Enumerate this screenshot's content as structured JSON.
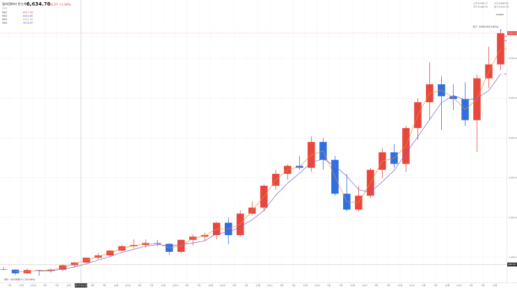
{
  "chart_data": {
    "type": "candlestick",
    "title": "필라델피아 반도체",
    "currency": "USD",
    "price": {
      "value": 6634.76,
      "label": "6,634.76"
    },
    "change": "+128.59 +1.98%",
    "ohlc_header": [
      "시가 6,506.17",
      "고가 6,663.01",
      "저가 6,488.35",
      "종가 6,634.76"
    ],
    "scale_mode": "Linear",
    "max_label": "최고 : 6,690.90(-0.83%)",
    "min_label": "최저 : 543.808(+1,120.06%)",
    "crosshair": {
      "x": 2017.01,
      "x_label": "2017-01-05",
      "y": {
        "value": 820.5,
        "label": "820.50"
      }
    },
    "x": [
      2015.375,
      2015.625,
      2015.875,
      2016.125,
      2016.375,
      2016.625,
      2016.875,
      2017.125,
      2017.375,
      2017.625,
      2017.875,
      2018.125,
      2018.375,
      2018.625,
      2018.875,
      2019.125,
      2019.375,
      2019.625,
      2019.875,
      2020.125,
      2020.375,
      2020.625,
      2020.875,
      2021.125,
      2021.375,
      2021.625,
      2021.875,
      2022.125,
      2022.375,
      2022.625,
      2022.875,
      2023.125,
      2023.375,
      2023.625,
      2023.875,
      2024.125,
      2024.375,
      2024.625,
      2024.875,
      2025.125,
      2025.375,
      2025.625,
      2025.875
    ],
    "open": [
      700,
      690,
      600,
      680,
      660,
      690,
      800,
      870,
      990,
      1050,
      1170,
      1280,
      1310,
      1360,
      1340,
      1140,
      1440,
      1520,
      1560,
      1870,
      1560,
      2100,
      2250,
      2800,
      3100,
      3300,
      3250,
      3900,
      3450,
      2600,
      2200,
      2550,
      3200,
      3640,
      3350,
      4250,
      4900,
      5350,
      5050,
      4980,
      4450,
      5500,
      5850
    ],
    "high": [
      760,
      700,
      720,
      690,
      720,
      820,
      880,
      1000,
      1110,
      1180,
      1310,
      1450,
      1450,
      1440,
      1350,
      1450,
      1580,
      1620,
      1890,
      2000,
      2180,
      2400,
      2830,
      3200,
      3340,
      3550,
      4040,
      4000,
      3550,
      3100,
      2800,
      3250,
      3750,
      3850,
      4300,
      5000,
      5900,
      5550,
      5350,
      5400,
      5600,
      6300,
      6690.9
    ],
    "low": [
      680,
      560,
      590,
      540,
      620,
      660,
      760,
      860,
      950,
      1010,
      1150,
      1220,
      1240,
      1280,
      1060,
      1100,
      1300,
      1420,
      1450,
      1330,
      1530,
      2060,
      2150,
      2700,
      2950,
      3200,
      3150,
      3200,
      2550,
      2160,
      2150,
      2500,
      3000,
      3250,
      3150,
      3950,
      4450,
      4200,
      4700,
      4300,
      3650,
      5250,
      5700
    ],
    "close": [
      690,
      600,
      680,
      660,
      690,
      800,
      870,
      990,
      1050,
      1170,
      1280,
      1310,
      1360,
      1340,
      1140,
      1440,
      1520,
      1560,
      1870,
      1560,
      2100,
      2250,
      2800,
      3100,
      3300,
      3250,
      3900,
      3450,
      2600,
      2200,
      2550,
      3200,
      3640,
      3350,
      4250,
      4900,
      5350,
      5050,
      4980,
      4450,
      5500,
      5850,
      6634.76
    ],
    "up_color": "#e8473e",
    "down_color": "#2f6fe0",
    "indicators": [
      {
        "name": "MA1",
        "color": "#e8473e",
        "value": 6557.26,
        "label": "6557.26"
      },
      {
        "name": "MA2",
        "color": "#2f6fe0",
        "value": 6443.8,
        "label": "6443.80"
      },
      {
        "name": "MA3",
        "color": "#f08c2e",
        "value": 6242.38,
        "label": "6242.38",
        "values": [
          null,
          645,
          640,
          670,
          675,
          745,
          835,
          930,
          1020,
          1110,
          1225,
          1295,
          1335,
          1350,
          1240,
          1290,
          1480,
          1540,
          1715,
          1715,
          1830,
          2175,
          2525,
          2950,
          3200,
          3275,
          3575,
          3675,
          3025,
          2400,
          2375,
          2875,
          3420,
          3495,
          3800,
          4575,
          5125,
          5200,
          5015,
          4715,
          4975,
          5675,
          6242.38
        ]
      },
      {
        "name": "MA4",
        "color": "#7b5cd6",
        "value": 5608.69,
        "label": "5608.69",
        "values": [
          null,
          null,
          null,
          658,
          658,
          708,
          755,
          838,
          928,
          1020,
          1123,
          1203,
          1280,
          1323,
          1288,
          1320,
          1360,
          1415,
          1598,
          1628,
          1773,
          1945,
          2178,
          2563,
          2863,
          3113,
          3388,
          3475,
          3300,
          3038,
          2700,
          2638,
          2898,
          3185,
          3610,
          4035,
          4463,
          4888,
          5070,
          4958,
          4995,
          5195,
          5608.69
        ]
      }
    ],
    "xlim": [
      2015.3,
      2026.0
    ],
    "xticks": [
      {
        "value": 2015.5,
        "label": "7월"
      },
      {
        "value": 2015.75,
        "label": "10월"
      },
      {
        "value": 2016,
        "label": "2016"
      },
      {
        "value": 2016.25,
        "label": "4월"
      },
      {
        "value": 2016.5,
        "label": "7월"
      },
      {
        "value": 2016.75,
        "label": "10월"
      },
      {
        "value": 2017,
        "label": "2017"
      },
      {
        "value": 2017.25,
        "label": "4월"
      },
      {
        "value": 2017.5,
        "label": "7월"
      },
      {
        "value": 2017.75,
        "label": "10월"
      },
      {
        "value": 2018,
        "label": "2018"
      },
      {
        "value": 2018.25,
        "label": "4월"
      },
      {
        "value": 2018.5,
        "label": "7월"
      },
      {
        "value": 2018.75,
        "label": "10월"
      },
      {
        "value": 2019,
        "label": "2019"
      },
      {
        "value": 2019.25,
        "label": "4월"
      },
      {
        "value": 2019.5,
        "label": "7월"
      },
      {
        "value": 2019.75,
        "label": "10월"
      },
      {
        "value": 2020,
        "label": "2020"
      },
      {
        "value": 2020.25,
        "label": "4월"
      },
      {
        "value": 2020.5,
        "label": "7월"
      },
      {
        "value": 2020.75,
        "label": "10월"
      },
      {
        "value": 2021,
        "label": "2021"
      },
      {
        "value": 2021.25,
        "label": "4월"
      },
      {
        "value": 2021.5,
        "label": "7월"
      },
      {
        "value": 2021.75,
        "label": "10월"
      },
      {
        "value": 2022,
        "label": "2022"
      },
      {
        "value": 2022.25,
        "label": "4월"
      },
      {
        "value": 2022.5,
        "label": "7월"
      },
      {
        "value": 2022.75,
        "label": "10월"
      },
      {
        "value": 2023,
        "label": "2023"
      },
      {
        "value": 2023.25,
        "label": "4월"
      },
      {
        "value": 2023.5,
        "label": "7월"
      },
      {
        "value": 2023.75,
        "label": "10월"
      },
      {
        "value": 2024,
        "label": "2024"
      },
      {
        "value": 2024.25,
        "label": "4월"
      },
      {
        "value": 2024.5,
        "label": "7월"
      },
      {
        "value": 2024.75,
        "label": "10월"
      },
      {
        "value": 2025,
        "label": "2025"
      },
      {
        "value": 2025.25,
        "label": "4월"
      },
      {
        "value": 2025.5,
        "label": "7월"
      },
      {
        "value": 2025.75,
        "label": "10월"
      }
    ],
    "ylim": [
      370,
      7294
    ],
    "yticks": [
      {
        "value": 1000,
        "label": "1,000.00"
      },
      {
        "value": 2000,
        "label": "2,000.00"
      },
      {
        "value": 3000,
        "label": "3,000.00"
      },
      {
        "value": 4000,
        "label": "4,000.00"
      },
      {
        "value": 5000,
        "label": "5,000.00"
      },
      {
        "value": 6000,
        "label": "6,000.00"
      }
    ],
    "grid": true
  }
}
